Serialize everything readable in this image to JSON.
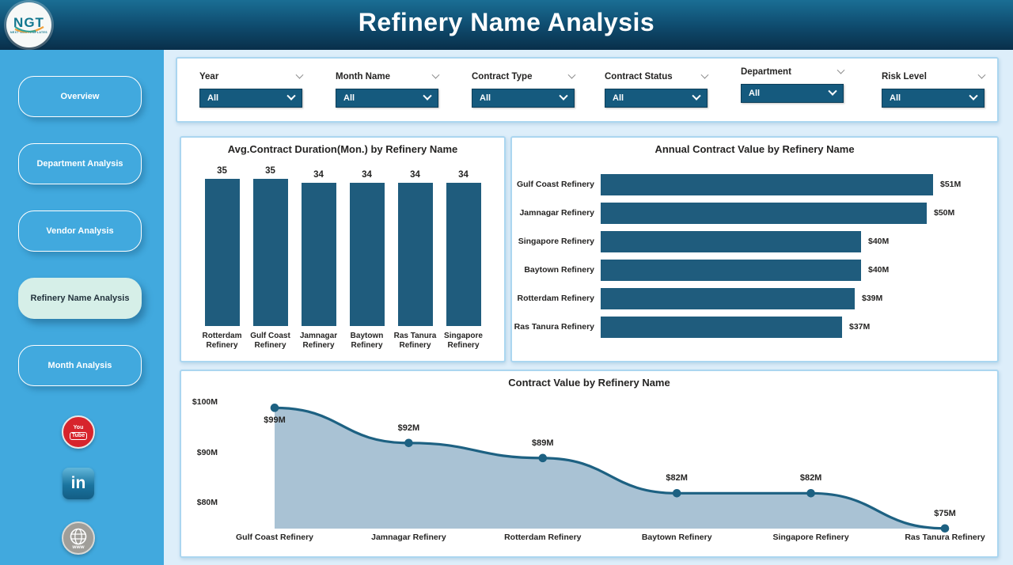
{
  "header": {
    "title": "Refinery Name Analysis",
    "logo": {
      "text": "NGT",
      "subtext": "NEXT GEN TEMPLATES"
    }
  },
  "sidebar": {
    "items": [
      {
        "label": "Overview",
        "active": false
      },
      {
        "label": "Department Analysis",
        "active": false
      },
      {
        "label": "Vendor Analysis",
        "active": false
      },
      {
        "label": "Refinery Name Analysis",
        "active": true
      },
      {
        "label": "Month Analysis",
        "active": false
      }
    ],
    "social": [
      {
        "name": "youtube-icon",
        "line1": "You",
        "line2": "Tube"
      },
      {
        "name": "linkedin-icon",
        "text": "in"
      },
      {
        "name": "website-icon",
        "text": "www"
      }
    ]
  },
  "filters": [
    {
      "label": "Year",
      "value": "All",
      "raised": false
    },
    {
      "label": "Month Name",
      "value": "All",
      "raised": false
    },
    {
      "label": "Contract Type",
      "value": "All",
      "raised": false
    },
    {
      "label": "Contract Status",
      "value": "All",
      "raised": false
    },
    {
      "label": "Department",
      "value": "All",
      "raised": true
    },
    {
      "label": "Risk Level",
      "value": "All",
      "raised": false
    }
  ],
  "colors": {
    "header_gradient_top": "#1a6e94",
    "header_gradient_bottom": "#092f4a",
    "sidebar_blue": "#41a9de",
    "active_button_bg": "#d6efe8",
    "bar_teal": "#1f5c7d",
    "dropdown_teal": "#155a7e",
    "area_fill": "#a9c2d4",
    "line_teal": "#1d6182",
    "card_border": "#abd6f0",
    "youtube_red": "#d7242c"
  },
  "chart_data": [
    {
      "type": "bar",
      "title": "Avg.Contract Duration(Mon.) by Refinery Name",
      "categories": [
        "Rotterdam Refinery",
        "Gulf Coast Refinery",
        "Jamnagar Refinery",
        "Baytown Refinery",
        "Ras Tanura Refinery",
        "Singapore Refinery"
      ],
      "values": [
        35,
        35,
        34,
        34,
        34,
        34
      ],
      "data_labels": [
        "35",
        "35",
        "34",
        "34",
        "34",
        "34"
      ],
      "xlabel": "",
      "ylabel": "",
      "ylim": [
        0,
        35
      ],
      "grid": false,
      "legend": false
    },
    {
      "type": "bar",
      "orientation": "horizontal",
      "title": "Annual Contract Value by Refinery Name",
      "categories": [
        "Gulf Coast Refinery",
        "Jamnagar Refinery",
        "Singapore Refinery",
        "Baytown Refinery",
        "Rotterdam Refinery",
        "Ras Tanura Refinery"
      ],
      "values": [
        51,
        50,
        40,
        40,
        39,
        37
      ],
      "data_labels": [
        "$51M",
        "$50M",
        "$40M",
        "$40M",
        "$39M",
        "$37M"
      ],
      "xlabel": "",
      "ylabel": "",
      "xlim": [
        0,
        51
      ],
      "grid": false,
      "legend": false
    },
    {
      "type": "area",
      "title": "Contract Value by Refinery Name",
      "categories": [
        "Gulf Coast Refinery",
        "Jamnagar Refinery",
        "Rotterdam Refinery",
        "Baytown Refinery",
        "Singapore Refinery",
        "Ras Tanura Refinery"
      ],
      "values": [
        99,
        92,
        89,
        82,
        82,
        75
      ],
      "data_labels": [
        "$99M",
        "$92M",
        "$89M",
        "$82M",
        "$82M",
        "$75M"
      ],
      "yticks": [
        {
          "label": "$100M",
          "value": 100
        },
        {
          "label": "$90M",
          "value": 90
        },
        {
          "label": "$80M",
          "value": 80
        }
      ],
      "xlabel": "",
      "ylabel": "",
      "ylim": [
        74.8,
        101.3
      ],
      "grid": false,
      "legend": false
    }
  ]
}
